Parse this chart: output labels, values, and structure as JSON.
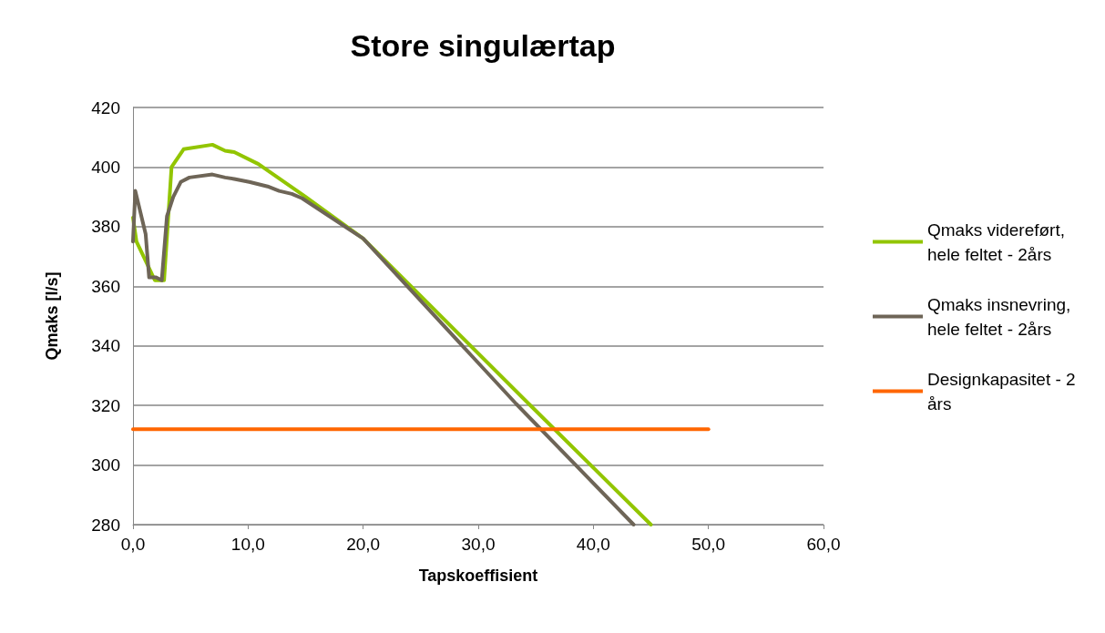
{
  "chart_data": {
    "type": "line",
    "title": "Store singulærtap",
    "xlabel": "Tapskoeffisient",
    "ylabel": "Qmaks [l/s]",
    "xlim": [
      0,
      60
    ],
    "xticks": [
      {
        "value": 0,
        "label": "0,0"
      },
      {
        "value": 10,
        "label": "10,0"
      },
      {
        "value": 20,
        "label": "20,0"
      },
      {
        "value": 30,
        "label": "30,0"
      },
      {
        "value": 40,
        "label": "40,0"
      },
      {
        "value": 50,
        "label": "50,0"
      },
      {
        "value": 60,
        "label": "60,0"
      }
    ],
    "ylim": [
      280,
      420
    ],
    "yticks": [
      280,
      300,
      320,
      340,
      360,
      380,
      400,
      420
    ],
    "grid": "y",
    "legend": "right",
    "marker": "none",
    "line_style": "solid",
    "series": [
      {
        "name": "Qmaks videreført, hele feltet - 2års",
        "color": "#92c500",
        "x": [
          0,
          0.3,
          1.9,
          2.7,
          3.35,
          4.4,
          6.9,
          8.0,
          8.8,
          10.9,
          15,
          20,
          34.4,
          45.0
        ],
        "values": [
          383,
          375,
          362,
          362,
          400,
          406,
          407.5,
          405.5,
          405,
          401,
          390,
          376,
          320.5,
          280
        ]
      },
      {
        "name": "Qmaks insnevring, hele feltet - 2års",
        "color": "#6e6557",
        "x": [
          0,
          0.2,
          1.1,
          1.4,
          2.0,
          2.5,
          2.95,
          3.5,
          4.15,
          4.9,
          6.9,
          8.0,
          8.8,
          10.1,
          11.7,
          12.7,
          13.8,
          14.7,
          20,
          33.3,
          43.5
        ],
        "values": [
          375,
          392,
          377.5,
          363,
          363,
          362,
          383.5,
          390,
          395,
          396.5,
          397.5,
          396.5,
          396,
          395,
          393.5,
          392,
          391,
          389.5,
          376,
          320.5,
          280
        ]
      },
      {
        "name": "Designkapasitet - 2 års",
        "color": "#ff6600",
        "x": [
          0,
          50
        ],
        "values": [
          312,
          312
        ]
      }
    ]
  }
}
